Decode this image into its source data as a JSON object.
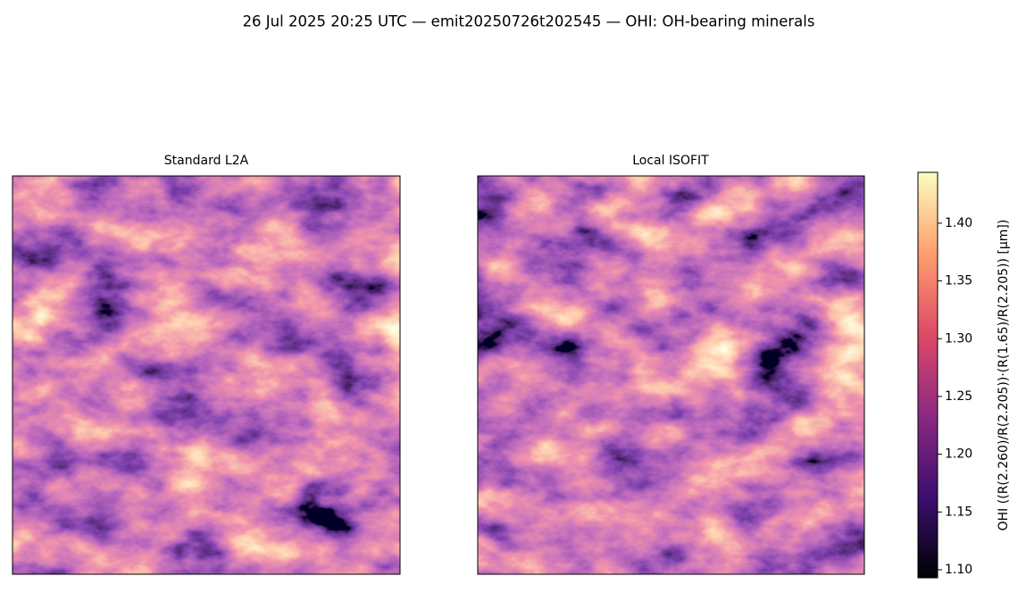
{
  "chart_data": {
    "type": "image",
    "title": "26 Jul 2025 20:25 UTC — emit20250726t202545 — OHI: OH-bearing minerals",
    "panels": [
      {
        "title": "Standard L2A"
      },
      {
        "title": "Local ISOFIT"
      }
    ],
    "colorbar": {
      "label": "OHI  ((R(2.260)/R(2.205))·(R(1.65)/R(2.205))  [μm])",
      "colormap": "magma",
      "lim": [
        1.093,
        1.444
      ],
      "ticks": [
        {
          "value": 1.1,
          "label": "1.10"
        },
        {
          "value": 1.15,
          "label": "1.15"
        },
        {
          "value": 1.2,
          "label": "1.20"
        },
        {
          "value": 1.25,
          "label": "1.25"
        },
        {
          "value": 1.3,
          "label": "1.30"
        },
        {
          "value": 1.35,
          "label": "1.35"
        },
        {
          "value": 1.4,
          "label": "1.40"
        }
      ]
    }
  }
}
